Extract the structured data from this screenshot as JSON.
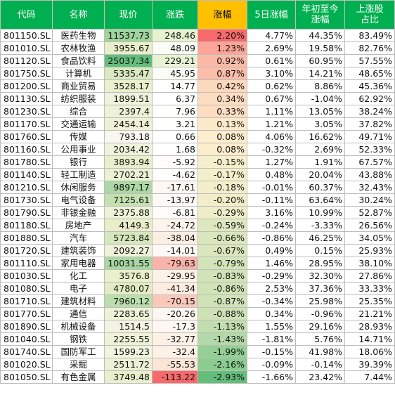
{
  "headers": [
    "代码",
    "名称",
    "现价",
    "涨跌",
    "涨幅",
    "5日涨幅",
    "年初至今\n涨幅",
    "上涨股\n占比"
  ],
  "rows": [
    [
      "801150.SL",
      "医药生物",
      "11537.73",
      "248.46",
      "2.20%",
      "4.77%",
      "44.35%",
      "83.49%"
    ],
    [
      "801010.SL",
      "农林牧渔",
      "3955.67",
      "48.09",
      "1.23%",
      "2.69%",
      "19.58%",
      "82.76%"
    ],
    [
      "801120.SL",
      "食品饮料",
      "25037.34",
      "229.21",
      "0.92%",
      "0.61%",
      "60.95%",
      "57.55%"
    ],
    [
      "801750.SL",
      "计算机",
      "5335.47",
      "45.95",
      "0.87%",
      "3.10%",
      "14.21%",
      "48.65%"
    ],
    [
      "801200.SL",
      "商业贸易",
      "3528.17",
      "14.77",
      "0.42%",
      "0.62%",
      "8.86%",
      "45.36%"
    ],
    [
      "801130.SL",
      "纺织服装",
      "1899.51",
      "6.37",
      "0.34%",
      "0.67%",
      "-1.04%",
      "62.92%"
    ],
    [
      "801230.SL",
      "综合",
      "2397.4",
      "7.96",
      "0.33%",
      "1.11%",
      "13.05%",
      "38.24%"
    ],
    [
      "801170.SL",
      "交通运输",
      "2454.14",
      "3.21",
      "0.13%",
      "1.21%",
      "3.05%",
      "37.82%"
    ],
    [
      "801760.SL",
      "传媒",
      "793.18",
      "0.66",
      "0.08%",
      "4.06%",
      "16.62%",
      "49.71%"
    ],
    [
      "801160.SL",
      "公用事业",
      "2034.42",
      "1.68",
      "0.08%",
      "-0.32%",
      "2.69%",
      "52.33%"
    ],
    [
      "801780.SL",
      "银行",
      "3893.94",
      "-5.92",
      "-0.15%",
      "1.27%",
      "1.91%",
      "67.57%"
    ],
    [
      "801140.SL",
      "轻工制造",
      "2702.21",
      "-4.62",
      "-0.17%",
      "0.48%",
      "20.04%",
      "43.88%"
    ],
    [
      "801210.SL",
      "休闲服务",
      "9897.17",
      "-17.61",
      "-0.18%",
      "-0.01%",
      "60.37%",
      "32.43%"
    ],
    [
      "801730.SL",
      "电气设备",
      "7125.61",
      "-13.97",
      "-0.20%",
      "-0.11%",
      "63.64%",
      "30.24%"
    ],
    [
      "801790.SL",
      "非银金融",
      "2375.88",
      "-6.81",
      "-0.29%",
      "3.16%",
      "10.99%",
      "52.87%"
    ],
    [
      "801180.SL",
      "房地产",
      "4149.3",
      "-24.72",
      "-0.59%",
      "-0.24%",
      "-3.33%",
      "26.56%"
    ],
    [
      "801880.SL",
      "汽车",
      "5723.84",
      "-38.04",
      "-0.66%",
      "-0.86%",
      "46.25%",
      "34.05%"
    ],
    [
      "801720.SL",
      "建筑装饰",
      "2092.27",
      "-14.01",
      "-0.67%",
      "0.49%",
      "0.15%",
      "25.93%"
    ],
    [
      "801110.SL",
      "家用电器",
      "10031.55",
      "-79.63",
      "-0.79%",
      "1.46%",
      "28.95%",
      "38.10%"
    ],
    [
      "801030.SL",
      "化工",
      "3576.8",
      "-29.95",
      "-0.83%",
      "-0.29%",
      "32.30%",
      "27.86%"
    ],
    [
      "801080.SL",
      "电子",
      "4780.07",
      "-41.34",
      "-0.86%",
      "2.53%",
      "37.36%",
      "33.33%"
    ],
    [
      "801710.SL",
      "建筑材料",
      "7960.12",
      "-70.15",
      "-0.87%",
      "-0.34%",
      "25.98%",
      "25.35%"
    ],
    [
      "801770.SL",
      "通信",
      "2283.65",
      "-20.26",
      "-0.88%",
      "0.34%",
      "-0.96%",
      "21.21%"
    ],
    [
      "801890.SL",
      "机械设备",
      "1514.5",
      "-17.3",
      "-1.13%",
      "1.55%",
      "29.16%",
      "28.93%"
    ],
    [
      "801040.SL",
      "钢铁",
      "2255.55",
      "-32.77",
      "-1.43%",
      "-1.81%",
      "5.76%",
      "14.71%"
    ],
    [
      "801740.SL",
      "国防军工",
      "1599.23",
      "-32.4",
      "-1.99%",
      "-0.15%",
      "41.98%",
      "18.06%"
    ],
    [
      "801020.SL",
      "采掘",
      "2511.72",
      "-55.53",
      "-2.16%",
      "-0.09%",
      "-0.14%",
      "39.39%"
    ],
    [
      "801050.SL",
      "有色金属",
      "3749.48",
      "-113.22",
      "-2.93%",
      "-1.66%",
      "23.42%",
      "7.44%"
    ]
  ],
  "colors": {
    "header_bg": "#00b050",
    "header_text": "#ffffff",
    "header_highlight_bg": "#ffc000",
    "grid": "#bdbdbd",
    "price_scale": [
      "#f8f8f0",
      "#e8eec7",
      "#63be7b"
    ],
    "change_scale": [
      "#f8696b",
      "#fbe6d4",
      "#ffffff",
      "#e6f2cf"
    ],
    "pct_scale": [
      "#63be7b",
      "#fdf2d0",
      "#f8696b"
    ]
  }
}
